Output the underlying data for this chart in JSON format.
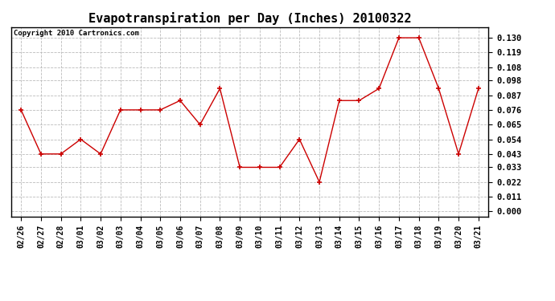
{
  "title": "Evapotranspiration per Day (Inches) 20100322",
  "copyright_text": "Copyright 2010 Cartronics.com",
  "dates": [
    "02/26",
    "02/27",
    "02/28",
    "03/01",
    "03/02",
    "03/03",
    "03/04",
    "03/05",
    "03/06",
    "03/07",
    "03/08",
    "03/09",
    "03/10",
    "03/11",
    "03/12",
    "03/13",
    "03/14",
    "03/15",
    "03/16",
    "03/17",
    "03/18",
    "03/19",
    "03/20",
    "03/21"
  ],
  "values": [
    0.076,
    0.043,
    0.043,
    0.054,
    0.043,
    0.076,
    0.076,
    0.076,
    0.083,
    0.065,
    0.092,
    0.033,
    0.033,
    0.033,
    0.054,
    0.022,
    0.083,
    0.083,
    0.092,
    0.13,
    0.13,
    0.092,
    0.043,
    0.092
  ],
  "line_color": "#cc0000",
  "marker_color": "#cc0000",
  "bg_color": "#ffffff",
  "grid_color": "#bbbbbb",
  "y_ticks": [
    0.0,
    0.011,
    0.022,
    0.033,
    0.043,
    0.054,
    0.065,
    0.076,
    0.087,
    0.098,
    0.108,
    0.119,
    0.13
  ],
  "ylim": [
    -0.004,
    0.138
  ],
  "title_fontsize": 11,
  "copyright_fontsize": 6.5,
  "tick_fontsize": 7,
  "ytick_fontsize": 7.5,
  "marker_size": 4,
  "linewidth": 1.0
}
